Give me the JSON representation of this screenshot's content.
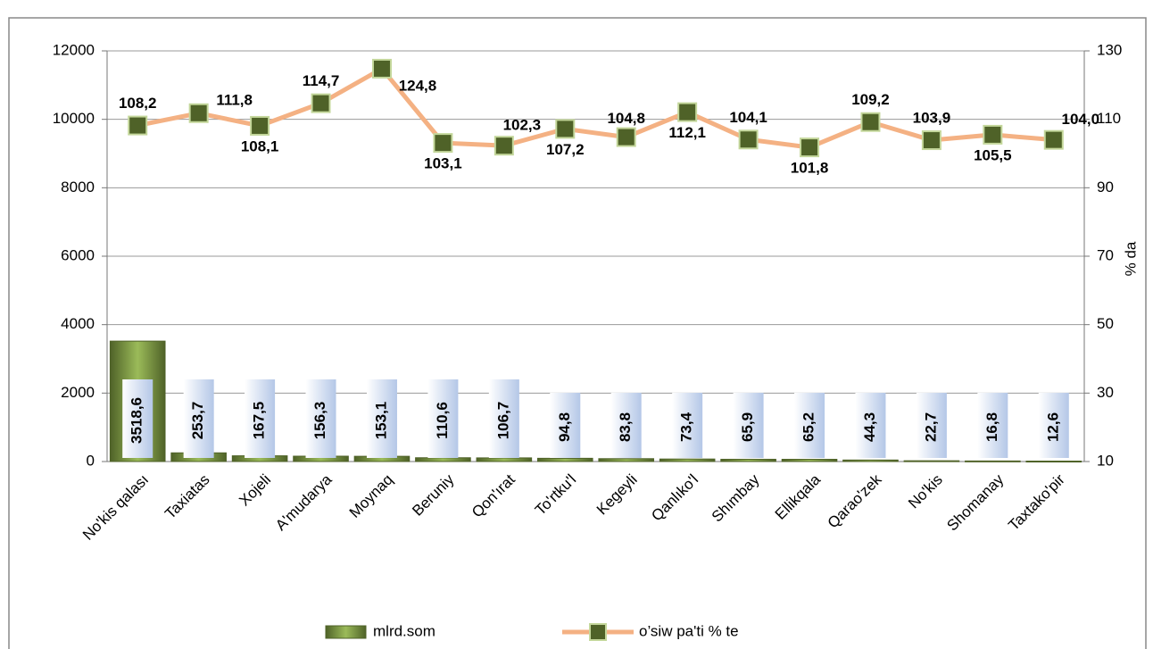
{
  "chart_data": {
    "type": "bar",
    "categories": [
      "No'kis qalası",
      "Taxiatas",
      "Xojeli",
      "A'mudarya",
      "Moynaq",
      "Beruniy",
      "Qon'ırat",
      "To'rtku'l",
      "Kegeyli",
      "Qanlıko'l",
      "Shımbay",
      "Ellikqala",
      "Qarao'zek",
      "No'kis",
      "Shomanay",
      "Taxtako'pir"
    ],
    "series": [
      {
        "name": "mlrd.som",
        "type": "bar",
        "color": "#77933c",
        "values": [
          3518.6,
          253.7,
          167.5,
          156.3,
          153.1,
          110.6,
          106.7,
          94.8,
          83.8,
          73.4,
          65.9,
          65.2,
          44.3,
          22.7,
          16.8,
          12.6
        ],
        "value_labels": [
          "3518,6",
          "253,7",
          "167,5",
          "156,3",
          "153,1",
          "110,6",
          "106,7",
          "94,8",
          "83,8",
          "73,4",
          "65,9",
          "65,2",
          "44,3",
          "22,7",
          "16,8",
          "12,6"
        ]
      },
      {
        "name": "o’siw  pa'ti % te",
        "type": "line",
        "axis": "y2",
        "color": "#f4b183",
        "marker_color": "#4f6228",
        "values": [
          108.2,
          111.8,
          108.1,
          114.7,
          124.8,
          103.1,
          102.3,
          107.2,
          104.8,
          112.1,
          104.1,
          101.8,
          109.2,
          103.9,
          105.5,
          104.0
        ],
        "value_labels": [
          "108,2",
          "111,8",
          "108,1",
          "114,7",
          "124,8",
          "103,1",
          "102,3",
          "107,2",
          "104,8",
          "112,1",
          "104,1",
          "101,8",
          "109,2",
          "103,9",
          "105,5",
          "104,0"
        ]
      }
    ],
    "ylim": [
      0,
      12000
    ],
    "yticks": [
      0,
      2000,
      4000,
      6000,
      8000,
      10000,
      12000
    ],
    "y2lim": [
      10,
      130
    ],
    "y2ticks": [
      10,
      30,
      50,
      70,
      90,
      110,
      130
    ],
    "y2label": "% da",
    "grid": true,
    "legend": "bottom"
  }
}
